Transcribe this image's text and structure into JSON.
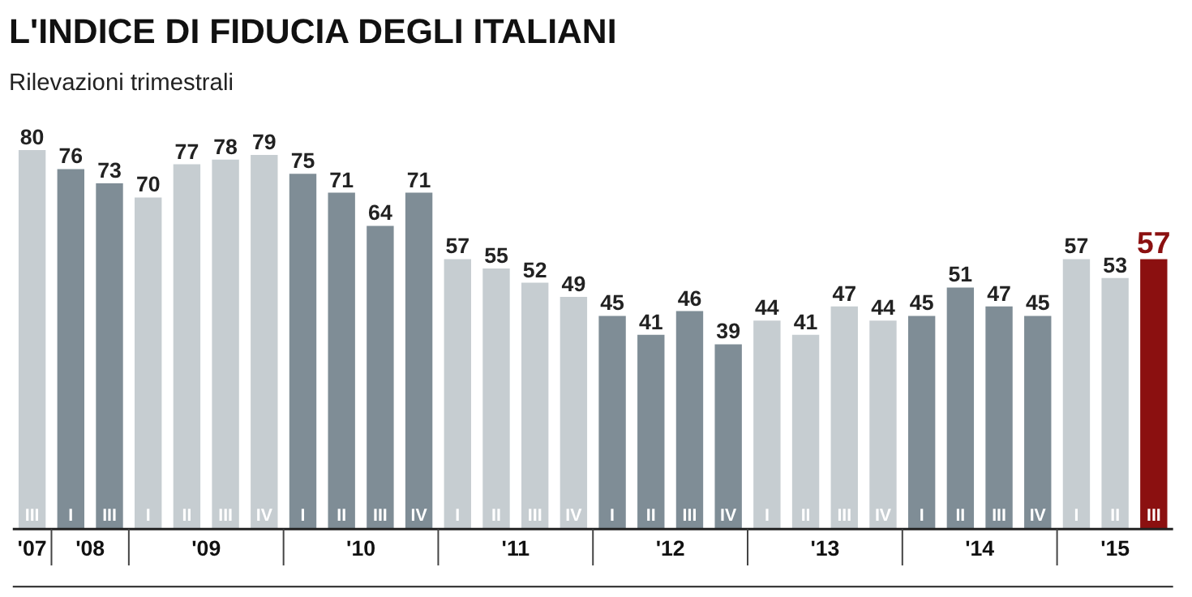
{
  "chart_data": {
    "type": "bar",
    "title": "L'INDICE DI FIDUCIA DEGLI ITALIANI",
    "subtitle": "Rilevazioni trimestrali",
    "categories": [
      "III",
      "I",
      "III",
      "I",
      "II",
      "III",
      "IV",
      "I",
      "II",
      "III",
      "IV",
      "I",
      "II",
      "III",
      "IV",
      "I",
      "II",
      "III",
      "IV",
      "I",
      "II",
      "III",
      "IV",
      "I",
      "II",
      "III",
      "IV",
      "I",
      "II",
      "III"
    ],
    "values": [
      80,
      76,
      73,
      70,
      77,
      78,
      79,
      75,
      71,
      64,
      71,
      57,
      55,
      52,
      49,
      45,
      41,
      46,
      39,
      44,
      41,
      47,
      44,
      45,
      51,
      47,
      45,
      57,
      53,
      57
    ],
    "colors": [
      "#c6cdd1",
      "#7f8d96",
      "#7f8d96",
      "#c6cdd1",
      "#c6cdd1",
      "#c6cdd1",
      "#c6cdd1",
      "#7f8d96",
      "#7f8d96",
      "#7f8d96",
      "#7f8d96",
      "#c6cdd1",
      "#c6cdd1",
      "#c6cdd1",
      "#c6cdd1",
      "#7f8d96",
      "#7f8d96",
      "#7f8d96",
      "#7f8d96",
      "#c6cdd1",
      "#c6cdd1",
      "#c6cdd1",
      "#c6cdd1",
      "#7f8d96",
      "#7f8d96",
      "#7f8d96",
      "#7f8d96",
      "#c6cdd1",
      "#c6cdd1",
      "#8b1010"
    ],
    "annotations": [
      "'07",
      "'08",
      "'09",
      "'10",
      "'11",
      "'12",
      "'13",
      "'14",
      "'15"
    ],
    "data_labels": true,
    "grid": false
  }
}
